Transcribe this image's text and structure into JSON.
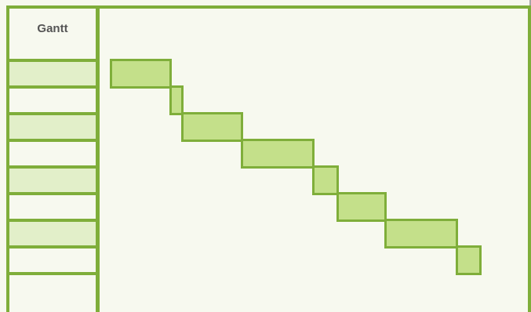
{
  "gantt": {
    "title": "Gantt",
    "colors": {
      "frame": "#7fae3a",
      "row_fill": "#e2efc9",
      "bar_fill": "#c4e08a",
      "background": "#f7f9ef"
    },
    "rows": [
      {
        "filled": true
      },
      {
        "filled": false
      },
      {
        "filled": true
      },
      {
        "filled": false
      },
      {
        "filled": true
      },
      {
        "filled": false
      },
      {
        "filled": true
      },
      {
        "filled": false
      },
      {
        "filled": false
      }
    ],
    "tasks": [
      {
        "start": 0,
        "duration": 2.5
      },
      {
        "start": 2.5,
        "duration": 0.5
      },
      {
        "start": 3,
        "duration": 2.5
      },
      {
        "start": 5.5,
        "duration": 3
      },
      {
        "start": 8.5,
        "duration": 1
      },
      {
        "start": 9.5,
        "duration": 2
      },
      {
        "start": 11.5,
        "duration": 3
      },
      {
        "start": 14.5,
        "duration": 1
      }
    ]
  }
}
